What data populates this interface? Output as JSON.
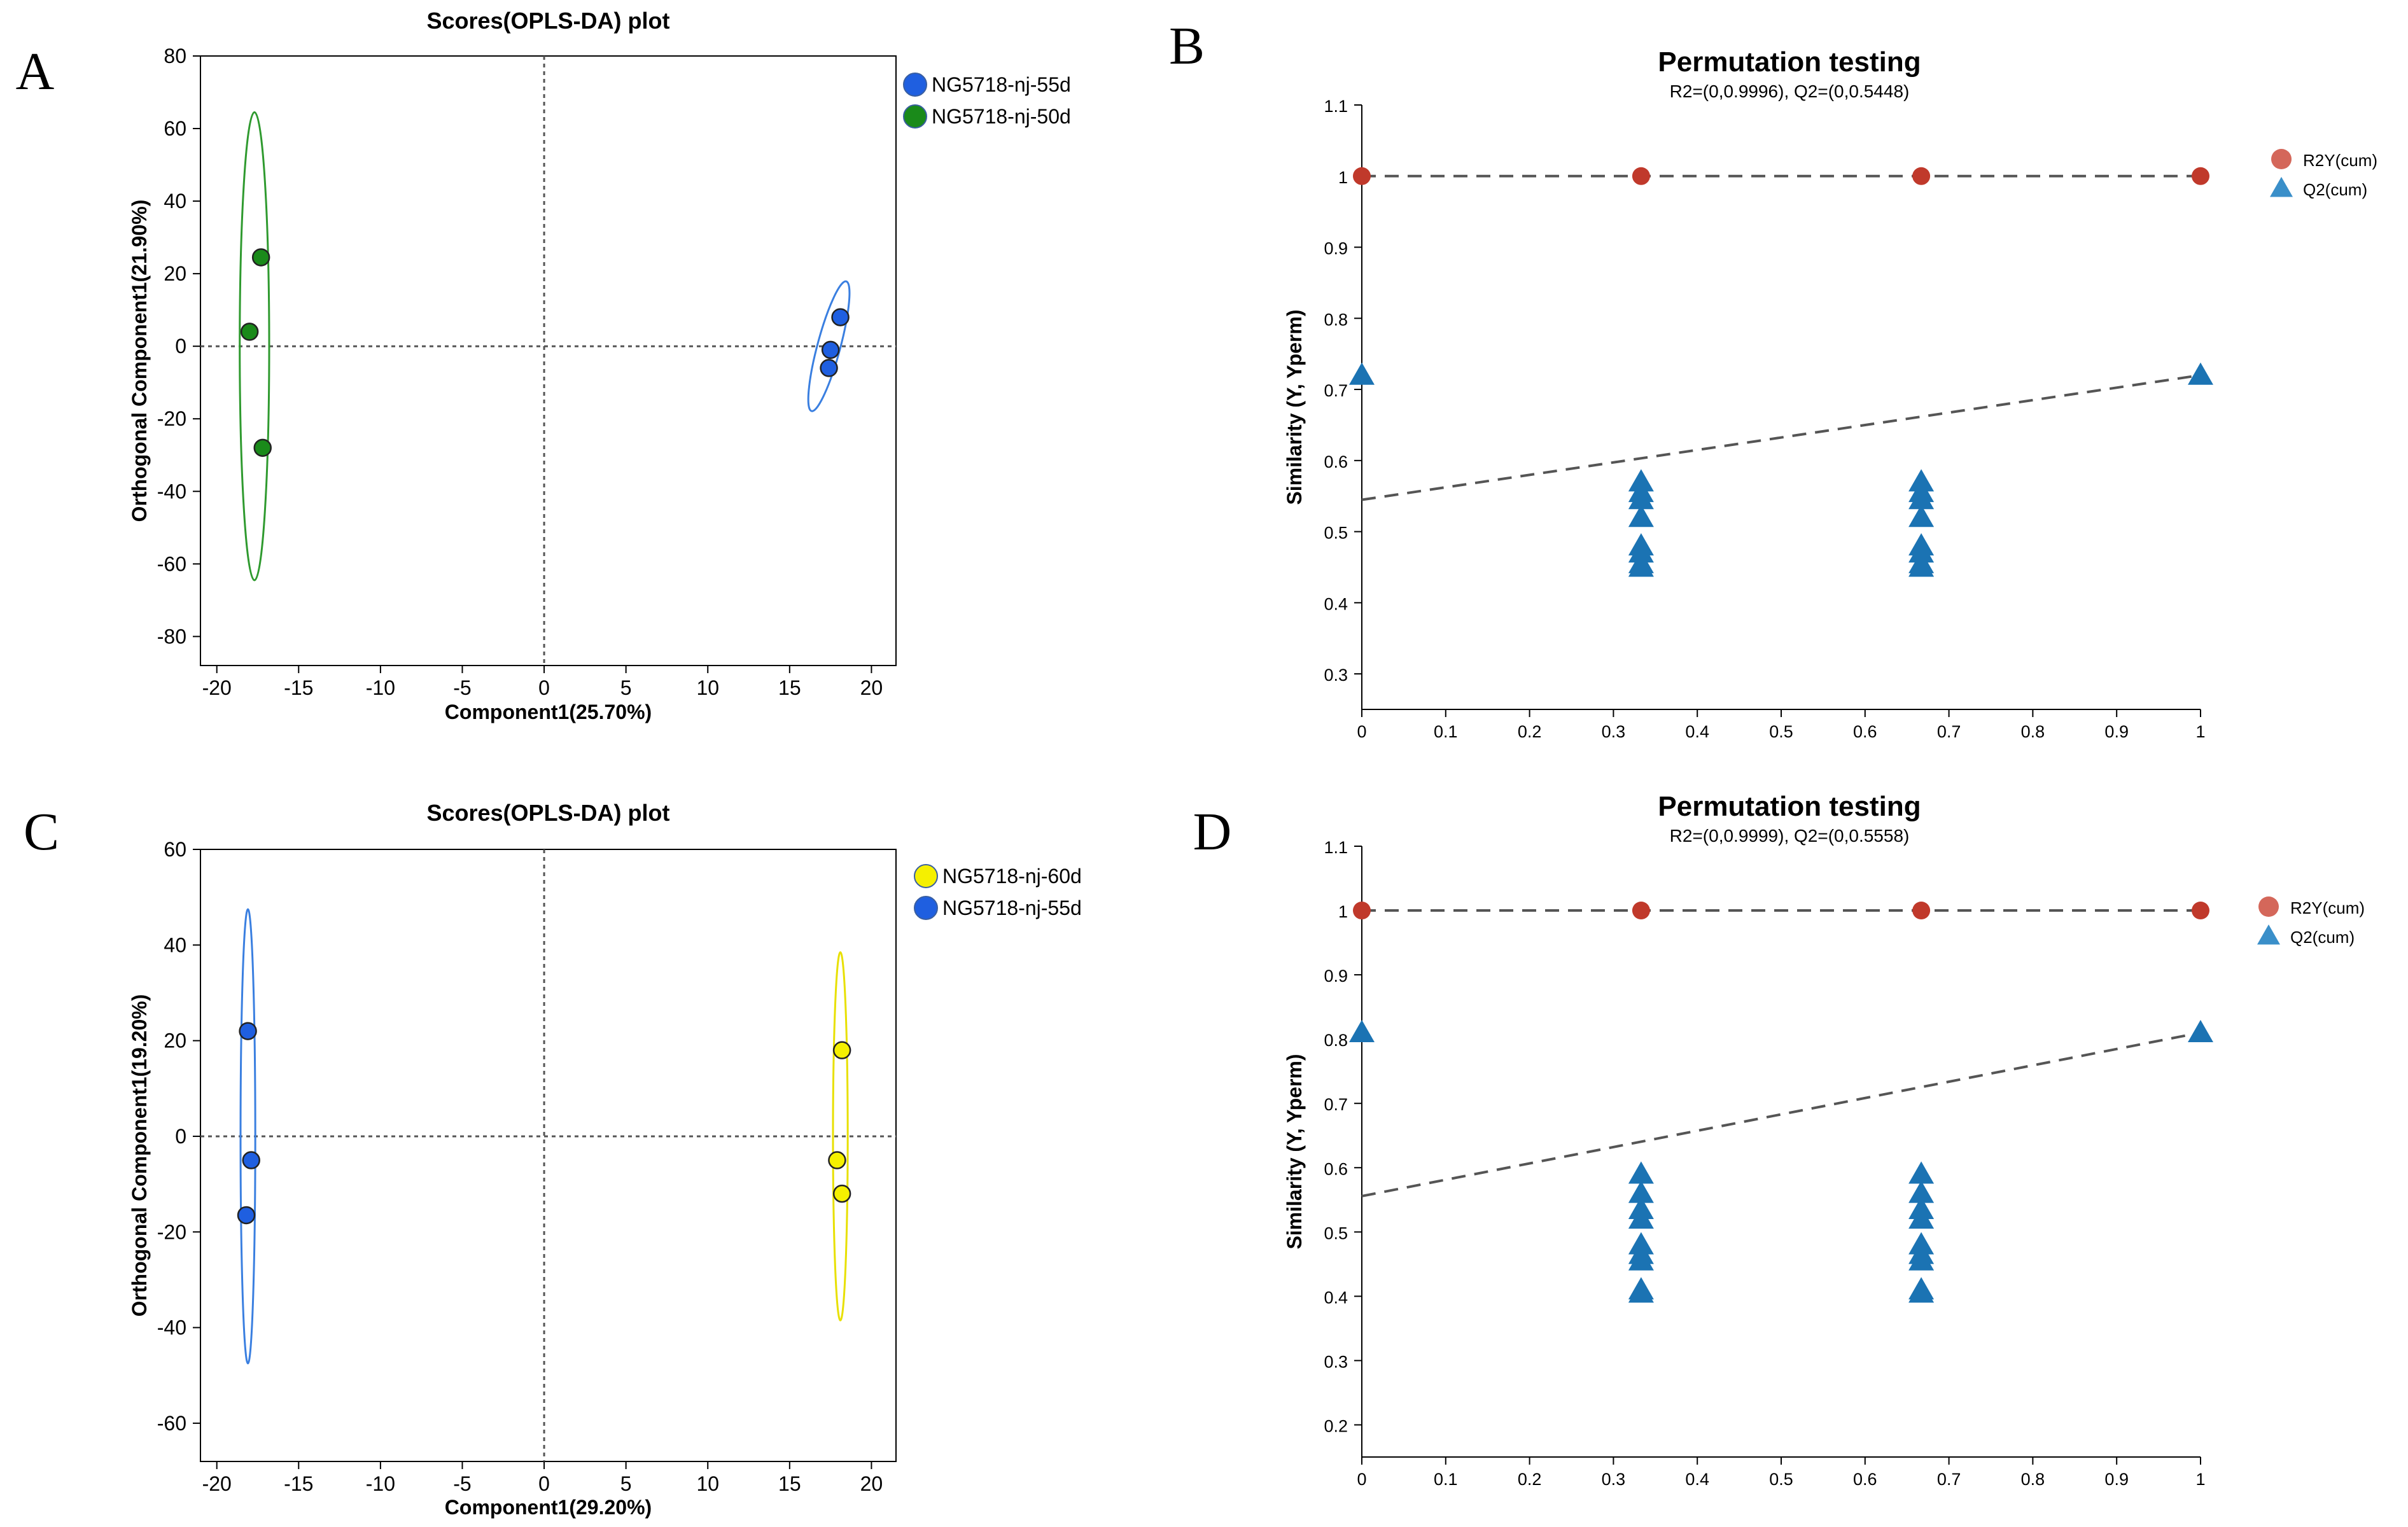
{
  "chart_data": [
    {
      "panel": "A",
      "type": "scatter",
      "title": "Scores(OPLS-DA) plot",
      "xlabel": "Component1(25.70%)",
      "ylabel": "Orthogonal Component1(21.90%)",
      "xlim": [
        -21,
        21.5
      ],
      "ylim": [
        -88,
        80
      ],
      "xticks": [
        -20,
        -15,
        -10,
        -5,
        0,
        5,
        10,
        15,
        20
      ],
      "yticks": [
        80,
        60,
        40,
        20,
        0,
        -20,
        -40,
        -60,
        -80
      ],
      "grid": false,
      "legend_position": "right",
      "series": [
        {
          "name": "NG5718-nj-55d",
          "color": "#1f5fe0",
          "points": [
            [
              18.1,
              8
            ],
            [
              17.5,
              -1
            ],
            [
              17.4,
              -6
            ]
          ],
          "ellipse": {
            "center": [
              17.4,
              0
            ],
            "x_radius": 0.7,
            "y_radius": 18.5,
            "tilt_deg": 15
          }
        },
        {
          "name": "NG5718-nj-50d",
          "color": "#1a8a1a",
          "points": [
            [
              -17.3,
              24.5
            ],
            [
              -18.0,
              4
            ],
            [
              -17.2,
              -28
            ]
          ],
          "ellipse": {
            "center": [
              -17.7,
              0
            ],
            "x_radius": 0.9,
            "y_radius": 64.5,
            "tilt_deg": 0
          }
        }
      ]
    },
    {
      "panel": "B",
      "type": "scatter",
      "title": "Permutation testing",
      "subtitle": "R2=(0,0.9996), Q2=(0,0.5448)",
      "xlabel": "",
      "ylabel": "Similarity (Y, Yperm)",
      "xlim": [
        0,
        1
      ],
      "ylim": [
        0.25,
        1.1
      ],
      "xticks": [
        0,
        0.1,
        0.2,
        0.3,
        0.4,
        0.5,
        0.6,
        0.7,
        0.8,
        0.9,
        1
      ],
      "yticks": [
        1.1,
        1,
        0.9,
        0.8,
        0.7,
        0.6,
        0.5,
        0.4,
        0.3
      ],
      "grid": false,
      "legend_position": "top-right",
      "series": [
        {
          "name": "R2Y(cum)",
          "color": "#c0392b",
          "x": [
            0,
            0.333,
            0.667,
            1
          ],
          "y": [
            1,
            1,
            1,
            1
          ]
        },
        {
          "name": "Q2(cum)",
          "color": "#1b73b3",
          "x": [
            0,
            0.333,
            0.333,
            0.333,
            0.333,
            0.333,
            0.333,
            0.333,
            0.333,
            0.667,
            0.667,
            0.667,
            0.667,
            0.667,
            0.667,
            0.667,
            0.667,
            1
          ],
          "y": [
            0.72,
            0.57,
            0.555,
            0.545,
            0.52,
            0.48,
            0.47,
            0.455,
            0.45,
            0.57,
            0.555,
            0.545,
            0.52,
            0.48,
            0.47,
            0.455,
            0.45,
            0.72
          ]
        }
      ],
      "reference_lines": [
        {
          "series": "R2Y(cum)",
          "from": [
            0,
            1
          ],
          "to": [
            1,
            1
          ]
        },
        {
          "series": "Q2(cum)",
          "from": [
            0,
            0.5448
          ],
          "to": [
            1,
            0.72
          ]
        }
      ]
    },
    {
      "panel": "C",
      "type": "scatter",
      "title": "Scores(OPLS-DA) plot",
      "xlabel": "Component1(29.20%)",
      "ylabel": "Orthogonal Component1(19.20%)",
      "xlim": [
        -21,
        21.5
      ],
      "ylim": [
        -68,
        60
      ],
      "xticks": [
        -20,
        -15,
        -10,
        -5,
        0,
        5,
        10,
        15,
        20
      ],
      "yticks": [
        60,
        40,
        20,
        0,
        -20,
        -40,
        -60
      ],
      "grid": false,
      "legend_position": "right",
      "series": [
        {
          "name": "NG5718-nj-60d",
          "color": "#f5f000",
          "points": [
            [
              18.2,
              18
            ],
            [
              17.9,
              -5
            ],
            [
              18.2,
              -12
            ]
          ],
          "ellipse": {
            "center": [
              18.1,
              0
            ],
            "x_radius": 0.45,
            "y_radius": 38.5,
            "tilt_deg": 0
          }
        },
        {
          "name": "NG5718-nj-55d",
          "color": "#1f5fe0",
          "points": [
            [
              -18.1,
              22
            ],
            [
              -17.9,
              -5
            ],
            [
              -18.2,
              -16.5
            ]
          ],
          "ellipse": {
            "center": [
              -18.1,
              0
            ],
            "x_radius": 0.45,
            "y_radius": 47.5,
            "tilt_deg": 0
          }
        }
      ]
    },
    {
      "panel": "D",
      "type": "scatter",
      "title": "Permutation testing",
      "subtitle": "R2=(0,0.9999), Q2=(0,0.5558)",
      "xlabel": "",
      "ylabel": "Similarity (Y, Yperm)",
      "xlim": [
        0,
        1
      ],
      "ylim": [
        0.15,
        1.1
      ],
      "xticks": [
        0,
        0.1,
        0.2,
        0.3,
        0.4,
        0.5,
        0.6,
        0.7,
        0.8,
        0.9,
        1
      ],
      "yticks": [
        1.1,
        1,
        0.9,
        0.8,
        0.7,
        0.6,
        0.5,
        0.4,
        0.3,
        0.2
      ],
      "grid": false,
      "legend_position": "top-right",
      "series": [
        {
          "name": "R2Y(cum)",
          "color": "#c0392b",
          "x": [
            0,
            0.333,
            0.667,
            1
          ],
          "y": [
            1,
            1,
            1,
            1
          ]
        },
        {
          "name": "Q2(cum)",
          "color": "#1b73b3",
          "x": [
            0,
            0.333,
            0.333,
            0.333,
            0.333,
            0.333,
            0.333,
            0.333,
            0.333,
            0.333,
            0.667,
            0.667,
            0.667,
            0.667,
            0.667,
            0.667,
            0.667,
            0.667,
            0.667,
            1
          ],
          "y": [
            0.81,
            0.59,
            0.56,
            0.535,
            0.52,
            0.48,
            0.465,
            0.455,
            0.41,
            0.405,
            0.59,
            0.56,
            0.535,
            0.52,
            0.48,
            0.465,
            0.455,
            0.41,
            0.405,
            0.81
          ]
        }
      ],
      "reference_lines": [
        {
          "series": "R2Y(cum)",
          "from": [
            0,
            1
          ],
          "to": [
            1,
            1
          ]
        },
        {
          "series": "Q2(cum)",
          "from": [
            0,
            0.5558
          ],
          "to": [
            1,
            0.81
          ]
        }
      ]
    }
  ]
}
